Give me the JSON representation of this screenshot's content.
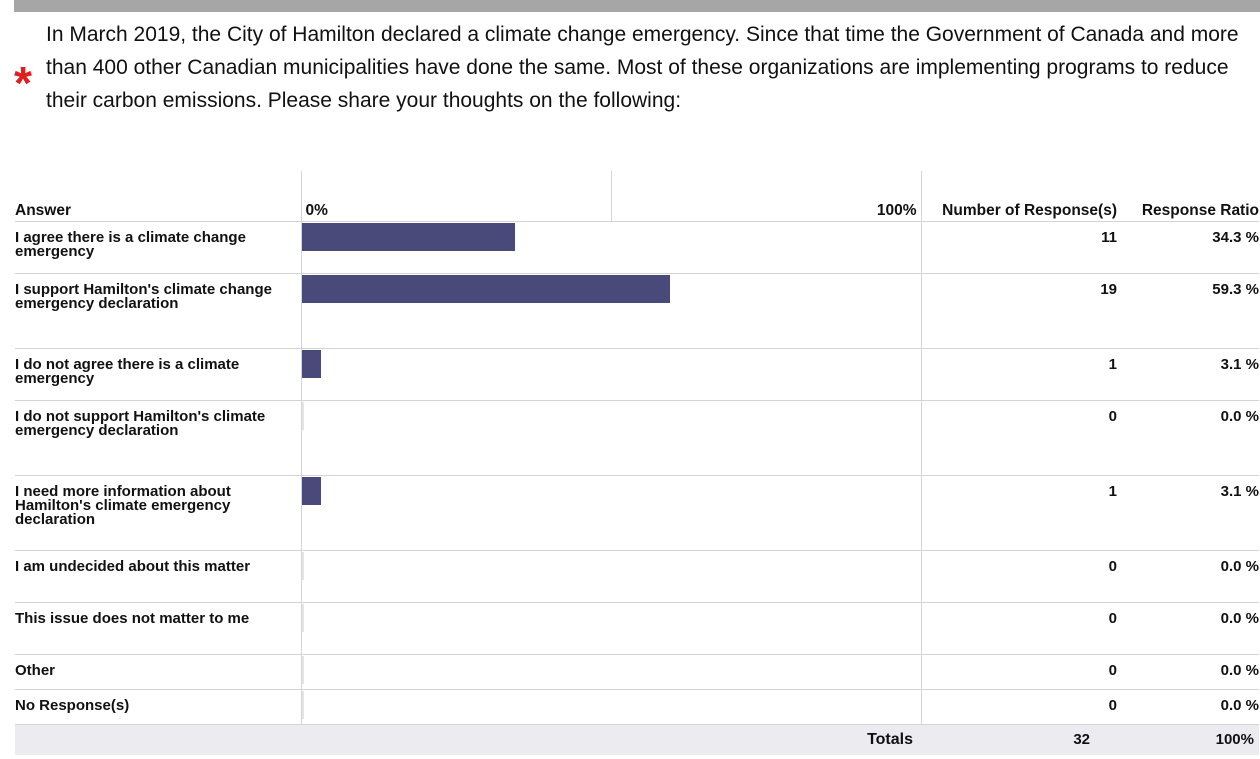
{
  "question": {
    "required_marker": "*",
    "text": "In March 2019, the City of Hamilton declared a climate change emergency. Since that time the Government of Canada and more than 400 other Canadian municipalities have done the same. Most of these organizations are implementing programs to reduce their carbon emissions. Please share your thoughts on the following:"
  },
  "table": {
    "headers": {
      "answer": "Answer",
      "scale_min": "0%",
      "scale_max": "100%",
      "count": "Number of Response(s)",
      "ratio": "Response Ratio"
    },
    "totals": {
      "label": "Totals",
      "count": "32",
      "ratio": "100%"
    }
  },
  "colors": {
    "bar": "#4a4a7a",
    "required_marker": "#e02020",
    "totals_background": "#ececf0"
  },
  "chart_data": {
    "type": "bar",
    "orientation": "horizontal",
    "xlim": [
      0,
      100
    ],
    "categories": [
      "I agree there is a climate change emergency",
      "I support Hamilton's climate change emergency declaration",
      "I do not agree there is a climate emergency",
      "I do not support Hamilton's climate emergency declaration",
      "I need more information about Hamilton's climate emergency declaration",
      "I am undecided about this matter",
      "This issue does not matter to me",
      "Other",
      "No Response(s)"
    ],
    "counts": [
      "11",
      "19",
      "1",
      "0",
      "1",
      "0",
      "0",
      "0",
      "0"
    ],
    "ratio_labels": [
      "34.3 %",
      "59.3 %",
      "3.1 %",
      "0.0 %",
      "3.1 %",
      "0.0 %",
      "0.0 %",
      "0.0 %",
      "0.0 %"
    ],
    "values": [
      34.3,
      59.3,
      3.1,
      0.0,
      3.1,
      0.0,
      0.0,
      0.0,
      0.0
    ]
  }
}
